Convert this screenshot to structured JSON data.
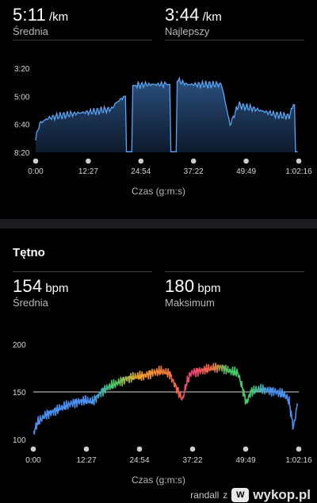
{
  "pace": {
    "avg_value": "5:11",
    "avg_unit": "/km",
    "avg_label": "Średnia",
    "best_value": "3:44",
    "best_unit": "/km",
    "best_label": "Najlepszy",
    "y_ticks": [
      "3:20",
      "5:00",
      "6:40",
      "8:20"
    ],
    "x_ticks": [
      "0:00",
      "12:27",
      "24:54",
      "37:22",
      "49:49",
      "1:02:16"
    ],
    "x_title": "Czas (g:m:s)",
    "color": "#5ba4f5"
  },
  "heart": {
    "section_title": "Tętno",
    "avg_value": "154",
    "avg_unit": "bpm",
    "avg_label": "Średnia",
    "max_value": "180",
    "max_unit": "bpm",
    "max_label": "Maksimum",
    "y_ticks": [
      "200",
      "150",
      "100"
    ],
    "x_ticks": [
      "0:00",
      "12:27",
      "24:54",
      "37:22",
      "49:49",
      "1:02:16"
    ],
    "x_title": "Czas (g:m:s)"
  },
  "chart_data": [
    {
      "type": "area",
      "title": "",
      "xlabel": "Czas (g:m:s)",
      "ylabel": "",
      "x_tick_labels": [
        "0:00",
        "12:27",
        "24:54",
        "37:22",
        "49:49",
        "1:02:16"
      ],
      "y_tick_labels": [
        "3:20",
        "5:00",
        "6:40",
        "8:20"
      ],
      "y_inverted": true,
      "x_minutes": [
        0,
        1,
        3,
        6,
        10,
        14,
        18,
        19,
        21,
        22,
        24,
        26,
        28,
        30,
        31,
        33,
        34,
        36,
        38,
        40,
        42,
        43,
        44,
        46,
        48,
        49,
        51,
        54,
        57,
        60,
        61,
        62
      ],
      "pace_min_per_km": [
        7.5,
        6.6,
        6.3,
        6.15,
        6.0,
        5.9,
        5.75,
        5.4,
        5.0,
        8.3,
        4.35,
        4.3,
        4.3,
        4.3,
        4.3,
        8.3,
        4.1,
        4.3,
        4.3,
        4.3,
        4.3,
        4.3,
        4.3,
        6.7,
        5.5,
        5.6,
        5.7,
        5.9,
        6.1,
        6.2,
        5.5,
        8.3
      ],
      "grid": false
    },
    {
      "type": "line",
      "title": "",
      "xlabel": "Czas (g:m:s)",
      "ylabel": "",
      "x_tick_labels": [
        "0:00",
        "12:27",
        "24:54",
        "37:22",
        "49:49",
        "1:02:16"
      ],
      "y_tick_labels": [
        "200",
        "150",
        "100"
      ],
      "ylim": [
        100,
        200
      ],
      "reference_line": 150,
      "x_minutes": [
        0,
        1,
        3,
        6,
        9,
        12,
        14,
        16,
        18,
        20,
        22,
        24,
        26,
        28,
        30,
        32,
        34,
        35,
        36,
        37,
        38,
        40,
        42,
        44,
        46,
        48,
        49,
        50,
        51,
        53,
        55,
        57,
        59,
        60,
        61,
        62
      ],
      "bpm": [
        106,
        118,
        126,
        132,
        138,
        141,
        140,
        150,
        156,
        160,
        164,
        166,
        167,
        170,
        172,
        169,
        150,
        142,
        160,
        170,
        171,
        173,
        175,
        176,
        172,
        170,
        155,
        138,
        150,
        153,
        152,
        150,
        147,
        140,
        112,
        138
      ],
      "colors": {
        "low": "#4a8ff0",
        "mid": "#45c96a",
        "high": "#f0703a",
        "peak": "#e8407a"
      },
      "grid": false
    }
  ],
  "footer": {
    "user": "randall",
    "z": "z",
    "site": "wykop.pl"
  }
}
